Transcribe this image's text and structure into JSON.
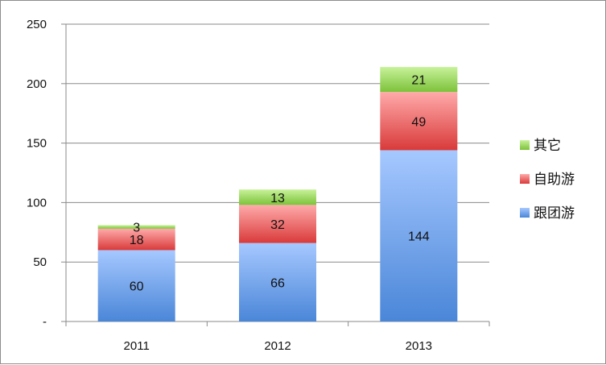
{
  "chart_data": {
    "type": "bar",
    "stacked": true,
    "categories": [
      "2011",
      "2012",
      "2013"
    ],
    "series": [
      {
        "name": "跟团游",
        "values": [
          60,
          66,
          144
        ],
        "color": "#4a86d8",
        "color_light": "#a6c8ff"
      },
      {
        "name": "自助游",
        "values": [
          18,
          32,
          49
        ],
        "color": "#d93a3a",
        "color_light": "#ffaaaa"
      },
      {
        "name": "其它",
        "values": [
          3,
          13,
          21
        ],
        "color": "#7cc23a",
        "color_light": "#c8f29a"
      }
    ],
    "y_ticks": [
      "-",
      "50",
      "100",
      "150",
      "200",
      "250"
    ],
    "y_tick_values": [
      0,
      50,
      100,
      150,
      200,
      250
    ],
    "ylim": [
      0,
      250
    ],
    "grid": true,
    "legend_position": "right",
    "legend_order": [
      "其它",
      "自助游",
      "跟团游"
    ]
  }
}
